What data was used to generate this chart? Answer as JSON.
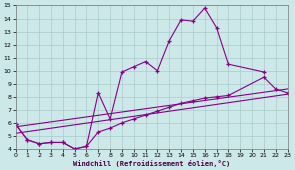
{
  "xlabel": "Windchill (Refroidissement éolien,°C)",
  "bg_color": "#cce8e8",
  "grid_color": "#aacccc",
  "line_color": "#880088",
  "xlim": [
    0,
    23
  ],
  "ylim": [
    4,
    15
  ],
  "xticks": [
    0,
    1,
    2,
    3,
    4,
    5,
    6,
    7,
    8,
    9,
    10,
    11,
    12,
    13,
    14,
    15,
    16,
    17,
    18,
    19,
    20,
    21,
    22,
    23
  ],
  "yticks": [
    4,
    5,
    6,
    7,
    8,
    9,
    10,
    11,
    12,
    13,
    14,
    15
  ],
  "line1_x": [
    0,
    1,
    2,
    3,
    4,
    5,
    6,
    7,
    8,
    9,
    10,
    11,
    12,
    13,
    14,
    15,
    16,
    17,
    18,
    21
  ],
  "line1_y": [
    5.9,
    4.7,
    4.4,
    4.5,
    4.5,
    4.0,
    4.2,
    8.3,
    6.3,
    9.9,
    10.3,
    10.7,
    10.0,
    12.3,
    13.9,
    13.8,
    14.8,
    13.3,
    10.5,
    9.9
  ],
  "line2_x": [
    0,
    1,
    2,
    3,
    4,
    5,
    6,
    7,
    8,
    9,
    10,
    11,
    12,
    13,
    14,
    15,
    16,
    17,
    18,
    21,
    22,
    23
  ],
  "line2_y": [
    5.9,
    4.7,
    4.4,
    4.5,
    4.5,
    4.0,
    4.2,
    5.3,
    5.6,
    6.0,
    6.3,
    6.6,
    6.9,
    7.2,
    7.5,
    7.7,
    7.9,
    8.0,
    8.1,
    9.5,
    8.6,
    8.3
  ],
  "line3_x": [
    0,
    23
  ],
  "line3_y": [
    5.2,
    8.2
  ],
  "line4_x": [
    0,
    23
  ],
  "line4_y": [
    5.7,
    8.6
  ]
}
